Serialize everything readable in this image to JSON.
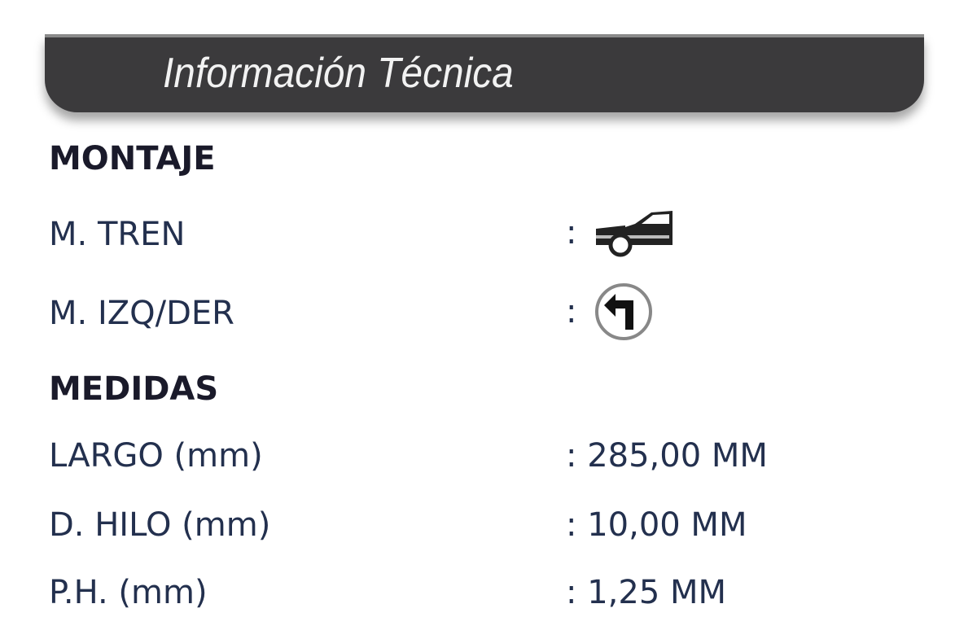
{
  "header": {
    "title": "Información Técnica"
  },
  "sections": [
    {
      "title": "MONTAJE",
      "rows": [
        {
          "label": "M. TREN",
          "value": "",
          "icon": "front-car-icon"
        },
        {
          "label": "M. IZQ/DER",
          "value": "",
          "icon": "turn-left-arrow-icon"
        }
      ]
    },
    {
      "title": "MEDIDAS",
      "rows": [
        {
          "label": "LARGO (mm)",
          "value": "285,00 MM"
        },
        {
          "label": "D. HILO (mm)",
          "value": "10,00 MM"
        },
        {
          "label": "P.H. (mm)",
          "value": "1,25 MM"
        }
      ]
    }
  ],
  "separator": ":"
}
